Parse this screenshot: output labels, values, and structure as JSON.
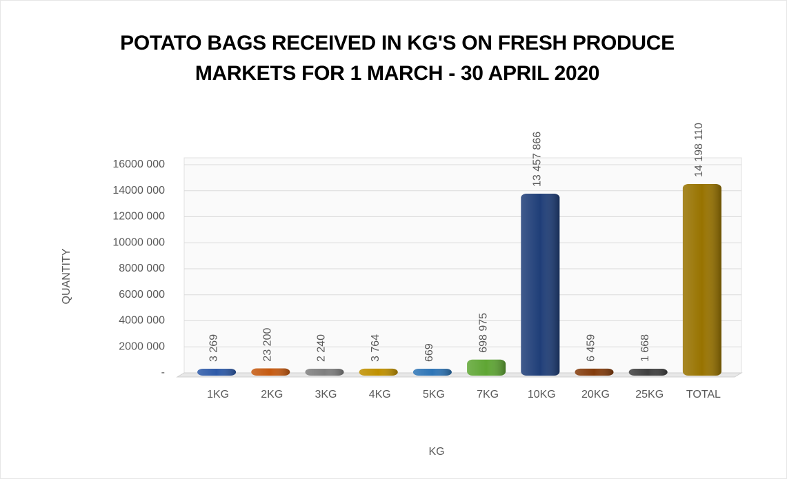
{
  "chart_data": {
    "type": "bar",
    "title": "POTATO BAGS RECEIVED IN KG'S ON FRESH PRODUCE MARKETS FOR 1 MARCH - 30 APRIL 2020",
    "x_label": "KG",
    "y_label": "QUANTITY",
    "categories": [
      "1KG",
      "2KG",
      "3KG",
      "4KG",
      "5KG",
      "7KG",
      "10KG",
      "20KG",
      "25KG",
      "TOTAL"
    ],
    "values": [
      3269,
      23200,
      2240,
      3764,
      669,
      698975,
      13457866,
      6459,
      1668,
      14198110
    ],
    "value_labels": [
      "3 269",
      "23 200",
      "2 240",
      "3 764",
      "669",
      "698 975",
      "13 457 866",
      "6 459",
      "1 668",
      "14 198 110"
    ],
    "colors": [
      "#2e5aa8",
      "#c55a11",
      "#7f7f7f",
      "#bf9000",
      "#2e75b6",
      "#5fa634",
      "#1f3e78",
      "#843c0c",
      "#404040",
      "#987300"
    ],
    "ylim": [
      0,
      16000000
    ],
    "yticks": [
      {
        "value": 0,
        "label": "-"
      },
      {
        "value": 2000000,
        "label": "2000 000"
      },
      {
        "value": 4000000,
        "label": "4000 000"
      },
      {
        "value": 6000000,
        "label": "6000 000"
      },
      {
        "value": 8000000,
        "label": "8000 000"
      },
      {
        "value": 10000000,
        "label": "10000 000"
      },
      {
        "value": 12000000,
        "label": "12000 000"
      },
      {
        "value": 14000000,
        "label": "14000 000"
      },
      {
        "value": 16000000,
        "label": "16000 000"
      }
    ],
    "grid": true
  }
}
